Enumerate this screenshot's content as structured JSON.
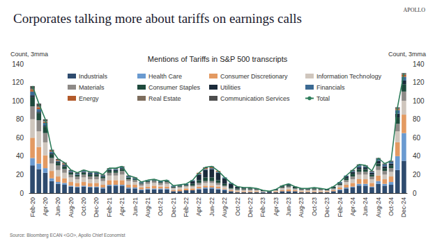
{
  "chart_data": {
    "type": "bar",
    "title": "Corporates talking more about tariffs on earnings calls",
    "subtitle": "Mentions of Tariffs in S&P 500 transcripts",
    "logo": "APOLLO",
    "source": "Source: Bloomberg ECAN <GO>, Apollo Chief Economist",
    "ylabel": "Count, 3mma",
    "y2label": "Count, 3mma",
    "stacked": true,
    "grid": false,
    "legend": "top",
    "categories": [
      "Feb-20",
      null,
      "Apr-20",
      null,
      "Jun-20",
      null,
      "Aug-20",
      null,
      "Oct-20",
      null,
      "Dec-20",
      null,
      "Feb-21",
      null,
      "Apr-21",
      null,
      "Jun-21",
      null,
      "Aug-21",
      null,
      "Oct-21",
      null,
      "Dec-21",
      null,
      "Feb-22",
      null,
      "Apr-22",
      null,
      "Jun-22",
      null,
      "Aug-22",
      null,
      "Oct-22",
      null,
      "Dec-22",
      null,
      "Feb-23",
      null,
      "Apr-23",
      null,
      "Jun-23",
      null,
      "Aug-23",
      null,
      "Oct-23",
      null,
      "Dec-23",
      null,
      "Feb-24",
      null,
      "Apr-24",
      null,
      "Jun-24",
      null,
      "Aug-24",
      null,
      "Oct-24",
      null,
      "Dec-24"
    ],
    "ylim": [
      0,
      140
    ],
    "yticks": [
      0,
      20,
      40,
      60,
      80,
      100,
      120,
      140
    ],
    "y2lim": [
      0,
      140
    ],
    "y2ticks": [
      0,
      20,
      40,
      60,
      80,
      100,
      120,
      140
    ],
    "series": [
      {
        "name": "Industrials",
        "color": "#2E4B6E",
        "values": [
          30,
          26,
          22,
          13,
          10,
          9,
          7,
          6,
          7,
          6,
          6,
          5,
          8,
          8,
          8,
          5,
          5,
          3,
          4,
          4,
          4,
          4,
          2,
          2,
          3,
          3,
          4,
          5,
          5,
          4,
          3,
          2,
          1,
          1,
          1,
          1,
          1,
          1,
          1,
          2,
          2,
          2,
          1,
          1,
          1,
          1,
          1,
          2,
          3,
          5,
          6,
          8,
          8,
          6,
          10,
          8,
          9,
          25,
          35
        ]
      },
      {
        "name": "Health Care",
        "color": "#6A9AD0",
        "values": [
          8,
          6,
          5,
          3,
          2,
          2,
          1,
          1,
          1,
          1,
          1,
          1,
          1,
          1,
          1,
          1,
          1,
          1,
          1,
          1,
          1,
          1,
          0,
          0,
          0,
          0,
          1,
          1,
          1,
          1,
          1,
          0,
          0,
          0,
          0,
          0,
          0,
          0,
          0,
          0,
          0,
          0,
          0,
          0,
          0,
          0,
          0,
          0,
          1,
          1,
          1,
          2,
          2,
          1,
          3,
          2,
          3,
          15,
          30
        ]
      },
      {
        "name": "Consumer Discretionary",
        "color": "#E39A62",
        "values": [
          22,
          18,
          14,
          8,
          6,
          5,
          4,
          4,
          4,
          4,
          4,
          3,
          5,
          5,
          5,
          3,
          3,
          2,
          2,
          3,
          2,
          2,
          1,
          2,
          2,
          2,
          2,
          2,
          2,
          2,
          1,
          1,
          1,
          1,
          1,
          1,
          0,
          0,
          1,
          1,
          2,
          1,
          1,
          1,
          1,
          1,
          1,
          1,
          2,
          3,
          4,
          5,
          5,
          4,
          6,
          5,
          6,
          15,
          20
        ]
      },
      {
        "name": "Information Technology",
        "color": "#CFC6BD",
        "values": [
          20,
          17,
          14,
          8,
          7,
          6,
          5,
          4,
          5,
          4,
          4,
          4,
          5,
          5,
          6,
          4,
          3,
          2,
          3,
          3,
          2,
          3,
          2,
          2,
          2,
          2,
          2,
          3,
          3,
          2,
          2,
          1,
          1,
          1,
          1,
          1,
          1,
          0,
          1,
          2,
          2,
          1,
          1,
          1,
          1,
          1,
          1,
          1,
          2,
          3,
          4,
          5,
          5,
          4,
          6,
          5,
          5,
          12,
          15
        ]
      },
      {
        "name": "Materials",
        "color": "#8E8A87",
        "values": [
          14,
          12,
          10,
          6,
          5,
          4,
          3,
          3,
          3,
          3,
          3,
          3,
          3,
          3,
          4,
          2,
          2,
          2,
          2,
          2,
          2,
          2,
          1,
          1,
          1,
          1,
          2,
          2,
          2,
          2,
          1,
          1,
          1,
          1,
          1,
          1,
          0,
          0,
          0,
          1,
          1,
          1,
          1,
          1,
          1,
          1,
          0,
          1,
          1,
          2,
          3,
          3,
          3,
          3,
          4,
          4,
          4,
          8,
          10
        ]
      },
      {
        "name": "Consumer Staples",
        "color": "#1E4A3C",
        "values": [
          10,
          8,
          7,
          4,
          3,
          3,
          2,
          2,
          2,
          2,
          2,
          2,
          2,
          2,
          2,
          2,
          1,
          1,
          1,
          1,
          1,
          1,
          1,
          1,
          1,
          2,
          3,
          4,
          4,
          3,
          2,
          1,
          1,
          1,
          1,
          0,
          0,
          0,
          0,
          1,
          1,
          1,
          0,
          0,
          1,
          0,
          0,
          1,
          1,
          2,
          3,
          3,
          3,
          2,
          3,
          3,
          3,
          7,
          8
        ]
      },
      {
        "name": "Utilities",
        "color": "#1B2A3A",
        "values": [
          2,
          1,
          1,
          1,
          1,
          1,
          1,
          0,
          1,
          1,
          1,
          0,
          1,
          1,
          1,
          0,
          0,
          0,
          0,
          0,
          0,
          0,
          0,
          0,
          0,
          3,
          6,
          8,
          9,
          8,
          6,
          4,
          2,
          1,
          1,
          1,
          1,
          1,
          1,
          1,
          1,
          1,
          1,
          1,
          1,
          1,
          1,
          1,
          1,
          2,
          2,
          2,
          2,
          2,
          3,
          2,
          2,
          4,
          4
        ]
      },
      {
        "name": "Financials",
        "color": "#3C6A93",
        "values": [
          4,
          3,
          3,
          2,
          1,
          1,
          1,
          1,
          1,
          1,
          1,
          1,
          1,
          1,
          1,
          1,
          1,
          1,
          1,
          1,
          1,
          1,
          1,
          1,
          1,
          1,
          1,
          1,
          1,
          1,
          1,
          1,
          0,
          0,
          0,
          0,
          0,
          0,
          0,
          0,
          1,
          0,
          0,
          0,
          0,
          0,
          0,
          0,
          1,
          1,
          1,
          2,
          1,
          1,
          2,
          2,
          2,
          4,
          4
        ]
      },
      {
        "name": "Energy",
        "color": "#B35A2A",
        "values": [
          2,
          2,
          1,
          1,
          1,
          1,
          0,
          0,
          0,
          0,
          0,
          0,
          0,
          0,
          0,
          0,
          0,
          0,
          0,
          0,
          0,
          0,
          0,
          0,
          0,
          0,
          1,
          1,
          1,
          1,
          0,
          0,
          0,
          0,
          0,
          0,
          0,
          0,
          0,
          0,
          0,
          0,
          0,
          0,
          0,
          0,
          0,
          0,
          0,
          0,
          0,
          0,
          0,
          0,
          0,
          0,
          0,
          1,
          2
        ]
      },
      {
        "name": "Real Estate",
        "color": "#7D6D5D",
        "values": [
          1,
          1,
          1,
          0,
          0,
          0,
          0,
          0,
          0,
          0,
          0,
          0,
          0,
          0,
          0,
          0,
          0,
          0,
          0,
          0,
          0,
          0,
          0,
          0,
          0,
          0,
          0,
          0,
          0,
          0,
          0,
          0,
          0,
          0,
          0,
          0,
          0,
          0,
          0,
          0,
          0,
          0,
          0,
          0,
          0,
          0,
          0,
          0,
          0,
          0,
          0,
          0,
          0,
          0,
          0,
          0,
          0,
          1,
          1
        ]
      },
      {
        "name": "Communication Services",
        "color": "#4D4D4D",
        "values": [
          3,
          3,
          2,
          1,
          1,
          1,
          1,
          1,
          1,
          1,
          1,
          1,
          1,
          1,
          1,
          1,
          1,
          0,
          0,
          0,
          0,
          0,
          0,
          0,
          0,
          0,
          0,
          1,
          1,
          0,
          0,
          0,
          0,
          0,
          0,
          0,
          0,
          0,
          0,
          0,
          0,
          0,
          0,
          0,
          0,
          0,
          0,
          0,
          0,
          0,
          1,
          1,
          1,
          1,
          1,
          1,
          1,
          1,
          1
        ]
      },
      {
        "name": "Total",
        "type": "line",
        "color": "#2E7D5B",
        "values": [
          116,
          97,
          80,
          47,
          37,
          33,
          25,
          22,
          25,
          23,
          23,
          20,
          27,
          27,
          29,
          19,
          17,
          12,
          14,
          15,
          13,
          14,
          8,
          9,
          10,
          14,
          22,
          28,
          29,
          24,
          17,
          11,
          7,
          6,
          6,
          5,
          3,
          2,
          4,
          8,
          10,
          7,
          5,
          5,
          6,
          5,
          4,
          7,
          12,
          19,
          25,
          31,
          30,
          24,
          38,
          32,
          35,
          93,
          130
        ]
      }
    ]
  }
}
